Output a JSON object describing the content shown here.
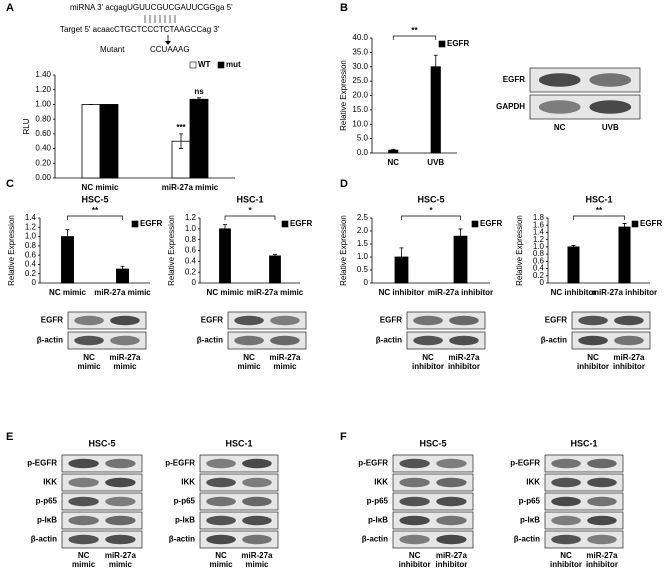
{
  "panel_labels": [
    "A",
    "B",
    "C",
    "D",
    "E",
    "F"
  ],
  "sequence": {
    "mirna": "miRNA 3' acgagUGUUCGUCGAUUCGGga 5'",
    "target": "Target 5' acaacCTGCTCCCTCTAAGCCag 3'",
    "mutant_label": "Mutant",
    "mutant": "CCUAAAG"
  },
  "chart_data": [
    {
      "type": "bar",
      "ylabel": "RLU",
      "categories": [
        "NC mimic",
        "miR-27a mimic"
      ],
      "series": [
        {
          "name": "WT",
          "color": "#ffffff",
          "values": [
            1.0,
            0.5
          ],
          "errors": [
            0,
            0.1
          ]
        },
        {
          "name": "mut",
          "color": "#000000",
          "values": [
            1.0,
            1.07
          ],
          "errors": [
            0,
            0.02
          ]
        }
      ],
      "annotations": [
        "***",
        "ns"
      ],
      "ylim": [
        0,
        1.4
      ],
      "yticks": [
        {
          "value": 0,
          "label": "0.00"
        },
        {
          "value": 0.2,
          "label": "0.20"
        },
        {
          "value": 0.4,
          "label": "0.40"
        },
        {
          "value": 0.6,
          "label": "0.60"
        },
        {
          "value": 0.8,
          "label": "0.80"
        },
        {
          "value": 1,
          "label": "1.00"
        },
        {
          "value": 1.2,
          "label": "1.20"
        },
        {
          "value": 1.4,
          "label": "1.40"
        }
      ]
    },
    {
      "type": "bar",
      "ylabel": "Relative Expression",
      "categories": [
        "NC",
        "UVB"
      ],
      "series": [
        {
          "name": "EGFR",
          "color": "#000000",
          "values": [
            1,
            30
          ],
          "errors": [
            0.3,
            4
          ]
        }
      ],
      "annotation": "**",
      "ylim": [
        0,
        40
      ],
      "yticks": [
        {
          "value": 0,
          "label": "0.0"
        },
        {
          "value": 5,
          "label": "5.0"
        },
        {
          "value": 10,
          "label": "10.0"
        },
        {
          "value": 15,
          "label": "15.0"
        },
        {
          "value": 20,
          "label": "20.0"
        },
        {
          "value": 25,
          "label": "25.0"
        },
        {
          "value": 30,
          "label": "30.0"
        },
        {
          "value": 35,
          "label": "35.0"
        },
        {
          "value": 40,
          "label": "40.0"
        }
      ]
    },
    {
      "type": "bar",
      "title": "HSC-5",
      "ylabel": "Relative Expression",
      "categories": [
        "NC mimic",
        "miR-27a mimic"
      ],
      "series": [
        {
          "name": "EGFR",
          "color": "#000000",
          "values": [
            1.0,
            0.3
          ],
          "errors": [
            0.15,
            0.06
          ]
        }
      ],
      "annotation": "**",
      "ylim": [
        0,
        1.4
      ],
      "yticks": [
        0,
        0.2,
        0.4,
        0.6,
        0.8,
        {
          "value": 1,
          "label": "1.0"
        },
        1.2,
        1.4
      ]
    },
    {
      "type": "bar",
      "title": "HSC-1",
      "ylabel": "Relative Expression",
      "categories": [
        "NC mimic",
        "miR-27a mimic"
      ],
      "series": [
        {
          "name": "EGFR",
          "color": "#000000",
          "values": [
            1.0,
            0.5
          ],
          "errors": [
            0.08,
            0.03
          ]
        }
      ],
      "annotation": "*",
      "ylim": [
        0,
        1.2
      ],
      "yticks": [
        0,
        0.2,
        0.4,
        0.6,
        0.8,
        {
          "value": 1,
          "label": "1.0"
        },
        1.2
      ]
    },
    {
      "type": "bar",
      "title": "HSC-5",
      "ylabel": "Relative Expression",
      "categories": [
        "NC inhibitor",
        "miR-27a inhibitor"
      ],
      "series": [
        {
          "name": "EGFR",
          "color": "#000000",
          "values": [
            1.0,
            1.8
          ],
          "errors": [
            0.35,
            0.28
          ]
        }
      ],
      "annotation": "*",
      "ylim": [
        0,
        2.5
      ],
      "yticks": [
        0,
        0.5,
        {
          "value": 1,
          "label": "1.0"
        },
        1.5,
        {
          "value": 2,
          "label": "2.0"
        },
        2.5
      ]
    },
    {
      "type": "bar",
      "title": "HSC-1",
      "ylabel": "Relative Expression",
      "categories": [
        "NC inhibitor",
        "miR-27a inhibitor"
      ],
      "series": [
        {
          "name": "EGFR",
          "color": "#000000",
          "values": [
            1.0,
            1.55
          ],
          "errors": [
            0.04,
            0.1
          ]
        }
      ],
      "annotation": "**",
      "ylim": [
        0,
        1.8
      ],
      "yticks": [
        0,
        0.2,
        0.4,
        0.6,
        0.8,
        {
          "value": 1,
          "label": "1.0"
        },
        1.2,
        1.4,
        1.6,
        1.8
      ]
    }
  ],
  "blots": [
    {
      "proteins": [
        "EGFR",
        "GAPDH"
      ],
      "lanes": [
        [
          "NC"
        ],
        [
          "UVB"
        ]
      ]
    },
    {
      "proteins": [
        "EGFR",
        "β-actin"
      ],
      "lanes": [
        [
          "NC",
          "mimic"
        ],
        [
          "miR-27a",
          "mimic"
        ]
      ]
    },
    {
      "proteins": [
        "EGFR",
        "β-actin"
      ],
      "lanes": [
        [
          "NC",
          "mimic"
        ],
        [
          "miR-27a",
          "mimic"
        ]
      ]
    },
    {
      "proteins": [
        "EGFR",
        "β-actin"
      ],
      "lanes": [
        [
          "NC",
          "inhibitor"
        ],
        [
          "miR-27a",
          "inhibitor"
        ]
      ]
    },
    {
      "proteins": [
        "EGFR",
        "β-actin"
      ],
      "lanes": [
        [
          "NC",
          "inhibitor"
        ],
        [
          "miR-27a",
          "inhibitor"
        ]
      ]
    },
    {
      "title": "HSC-5",
      "proteins": [
        "p-EGFR",
        "IKK",
        "p-p65",
        "p-IκB",
        "β-actin"
      ],
      "lanes": [
        [
          "NC",
          "mimic"
        ],
        [
          "miR-27a",
          "mimic"
        ]
      ]
    },
    {
      "title": "HSC-1",
      "proteins": [
        "p-EGFR",
        "IKK",
        "p-p65",
        "p-IκB",
        "β-actin"
      ],
      "lanes": [
        [
          "NC",
          "mimic"
        ],
        [
          "miR-27a",
          "mimic"
        ]
      ]
    },
    {
      "title": "HSC-5",
      "proteins": [
        "p-EGFR",
        "IKK",
        "p-p65",
        "p-IκB",
        "β-actin"
      ],
      "lanes": [
        [
          "NC",
          "inhibitor"
        ],
        [
          "miR-27a",
          "inhibitor"
        ]
      ]
    },
    {
      "title": "HSC-1",
      "proteins": [
        "p-EGFR",
        "IKK",
        "p-p65",
        "p-IκB",
        "β-actin"
      ],
      "lanes": [
        [
          "NC",
          "inhibitor"
        ],
        [
          "miR-27a",
          "inhibitor"
        ]
      ]
    }
  ]
}
